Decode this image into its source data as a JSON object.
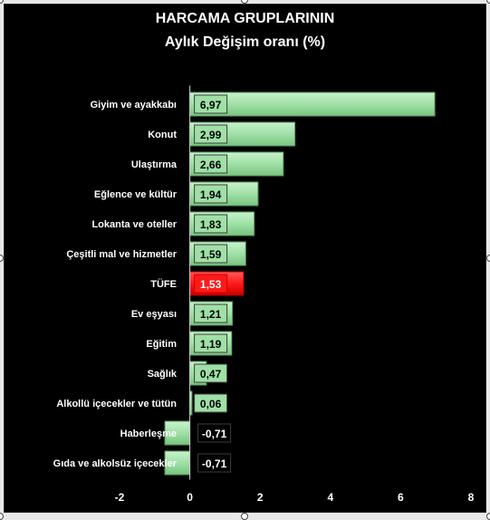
{
  "chart_data": {
    "type": "bar",
    "orientation": "horizontal",
    "title": "HARCAMA GRUPLARININ",
    "subtitle": "Aylık Değişim oranı (%)",
    "categories": [
      "Giyim ve ayakkabı",
      "Konut",
      "Ulaştırma",
      "Eğlence ve kültür",
      "Lokanta ve oteller",
      "Çeşitli mal ve hizmetler",
      "TÜFE",
      "Ev eşyası",
      "Eğitim",
      "Sağlık",
      "Alkollü içecekler ve tütün",
      "Haberleşme",
      "Gıda ve alkolsüz içecekler"
    ],
    "values": [
      6.97,
      2.99,
      2.66,
      1.94,
      1.83,
      1.59,
      1.53,
      1.21,
      1.19,
      0.47,
      0.06,
      -0.71,
      -0.71
    ],
    "data_labels": [
      "6,97",
      "2,99",
      "2,66",
      "1,94",
      "1,83",
      "1,59",
      "1,53",
      "1,21",
      "1,19",
      "0,47",
      "0,06",
      "-0,71",
      "-0,71"
    ],
    "highlight_category": "TÜFE",
    "xlim": [
      -2,
      8
    ],
    "x_ticks": [
      -2,
      0,
      2,
      4,
      6,
      8
    ],
    "x_tick_labels": [
      "-2",
      "0",
      "2",
      "4",
      "6",
      "8"
    ],
    "grid": false,
    "legend": "none",
    "colors": {
      "background": "#000000",
      "bar": "#9fe0a6",
      "bar_edge": "#5c9a62",
      "highlight_bar": "#ff1a1a",
      "highlight_edge": "#b00000",
      "label_text": "#ffffff",
      "value_text": "#000000",
      "highlight_value_text": "#ffffff"
    }
  }
}
